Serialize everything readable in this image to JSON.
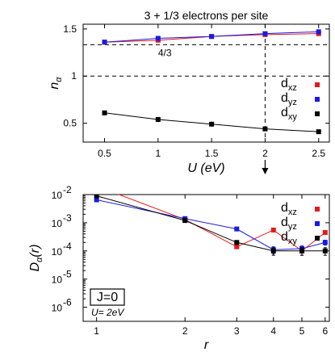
{
  "chart_data": [
    {
      "type": "line",
      "title": "3 + 1/3 electrons per site",
      "xlabel": "U (eV)",
      "ylabel": "n",
      "ylabel_subscript": "α",
      "xlim": [
        0.3,
        2.6
      ],
      "ylim": [
        0.3,
        1.55
      ],
      "x_ticks": [
        "0.5",
        "1",
        "1.5",
        "2",
        "2.5"
      ],
      "y_ticks": [
        "0.5",
        "1",
        "1.5"
      ],
      "legend_position": "right",
      "series": [
        {
          "name": "d",
          "name_sub": "xz",
          "color": "#e41a1c",
          "x": [
            0.5,
            1.0,
            1.5,
            2.0,
            2.5
          ],
          "y": [
            1.36,
            1.38,
            1.42,
            1.44,
            1.45
          ]
        },
        {
          "name": "d",
          "name_sub": "yz",
          "color": "#1a1ae4",
          "x": [
            0.5,
            1.0,
            1.5,
            2.0,
            2.5
          ],
          "y": [
            1.36,
            1.4,
            1.42,
            1.45,
            1.47
          ]
        },
        {
          "name": "d",
          "name_sub": "xy",
          "color": "#000000",
          "x": [
            0.5,
            1.0,
            1.5,
            2.0,
            2.5
          ],
          "y": [
            0.61,
            0.54,
            0.49,
            0.44,
            0.41
          ]
        }
      ],
      "reference_lines": [
        {
          "orientation": "horizontal",
          "value": 1.333,
          "label": "4/3",
          "label_x": 1.0
        },
        {
          "orientation": "horizontal",
          "value": 1.0,
          "label": ""
        },
        {
          "orientation": "vertical",
          "value": 2.0,
          "label": ""
        }
      ]
    },
    {
      "type": "line",
      "scale": "log-log",
      "xlabel": "r",
      "ylabel": "D",
      "ylabel_subscript": "α",
      "ylabel_suffix": "(r)",
      "xlim": [
        0.9,
        6.2
      ],
      "ylim_exp": [
        -6.5,
        -2
      ],
      "x_ticks": [
        "1",
        "2",
        "3",
        "4",
        "5",
        "6"
      ],
      "y_tick_exponents": [
        -6,
        -5,
        -4,
        -3,
        -2
      ],
      "y_tick_base": "10",
      "legend_position": "top-right",
      "annotations": {
        "box_label": "J=0",
        "u_label": "U= 2eV"
      },
      "series": [
        {
          "name": "d",
          "name_sub": "xz",
          "color": "#e41a1c",
          "x": [
            1,
            2,
            3,
            4,
            5,
            6
          ],
          "y": [
            0.02,
            0.0013,
            0.00014,
            0.00055,
            0.0001,
            0.00045
          ],
          "err": [
            0,
            0,
            2e-05,
            0,
            3e-05,
            0
          ]
        },
        {
          "name": "d",
          "name_sub": "yz",
          "color": "#1a1ae4",
          "x": [
            1,
            2,
            3,
            4,
            5,
            6
          ],
          "y": [
            0.0065,
            0.0014,
            0.0006,
            0.00011,
            0.00012,
            0.0002
          ],
          "err": [
            0,
            0,
            0,
            3e-05,
            3e-05,
            4e-05
          ]
        },
        {
          "name": "d",
          "name_sub": "xy",
          "color": "#000000",
          "x": [
            1,
            2,
            3,
            4,
            5,
            6
          ],
          "y": [
            0.009,
            0.0012,
            0.0002,
            0.0001,
            0.0001,
            0.0001
          ],
          "err": [
            0,
            0,
            0,
            3e-05,
            3e-05,
            3e-05
          ]
        }
      ]
    }
  ]
}
